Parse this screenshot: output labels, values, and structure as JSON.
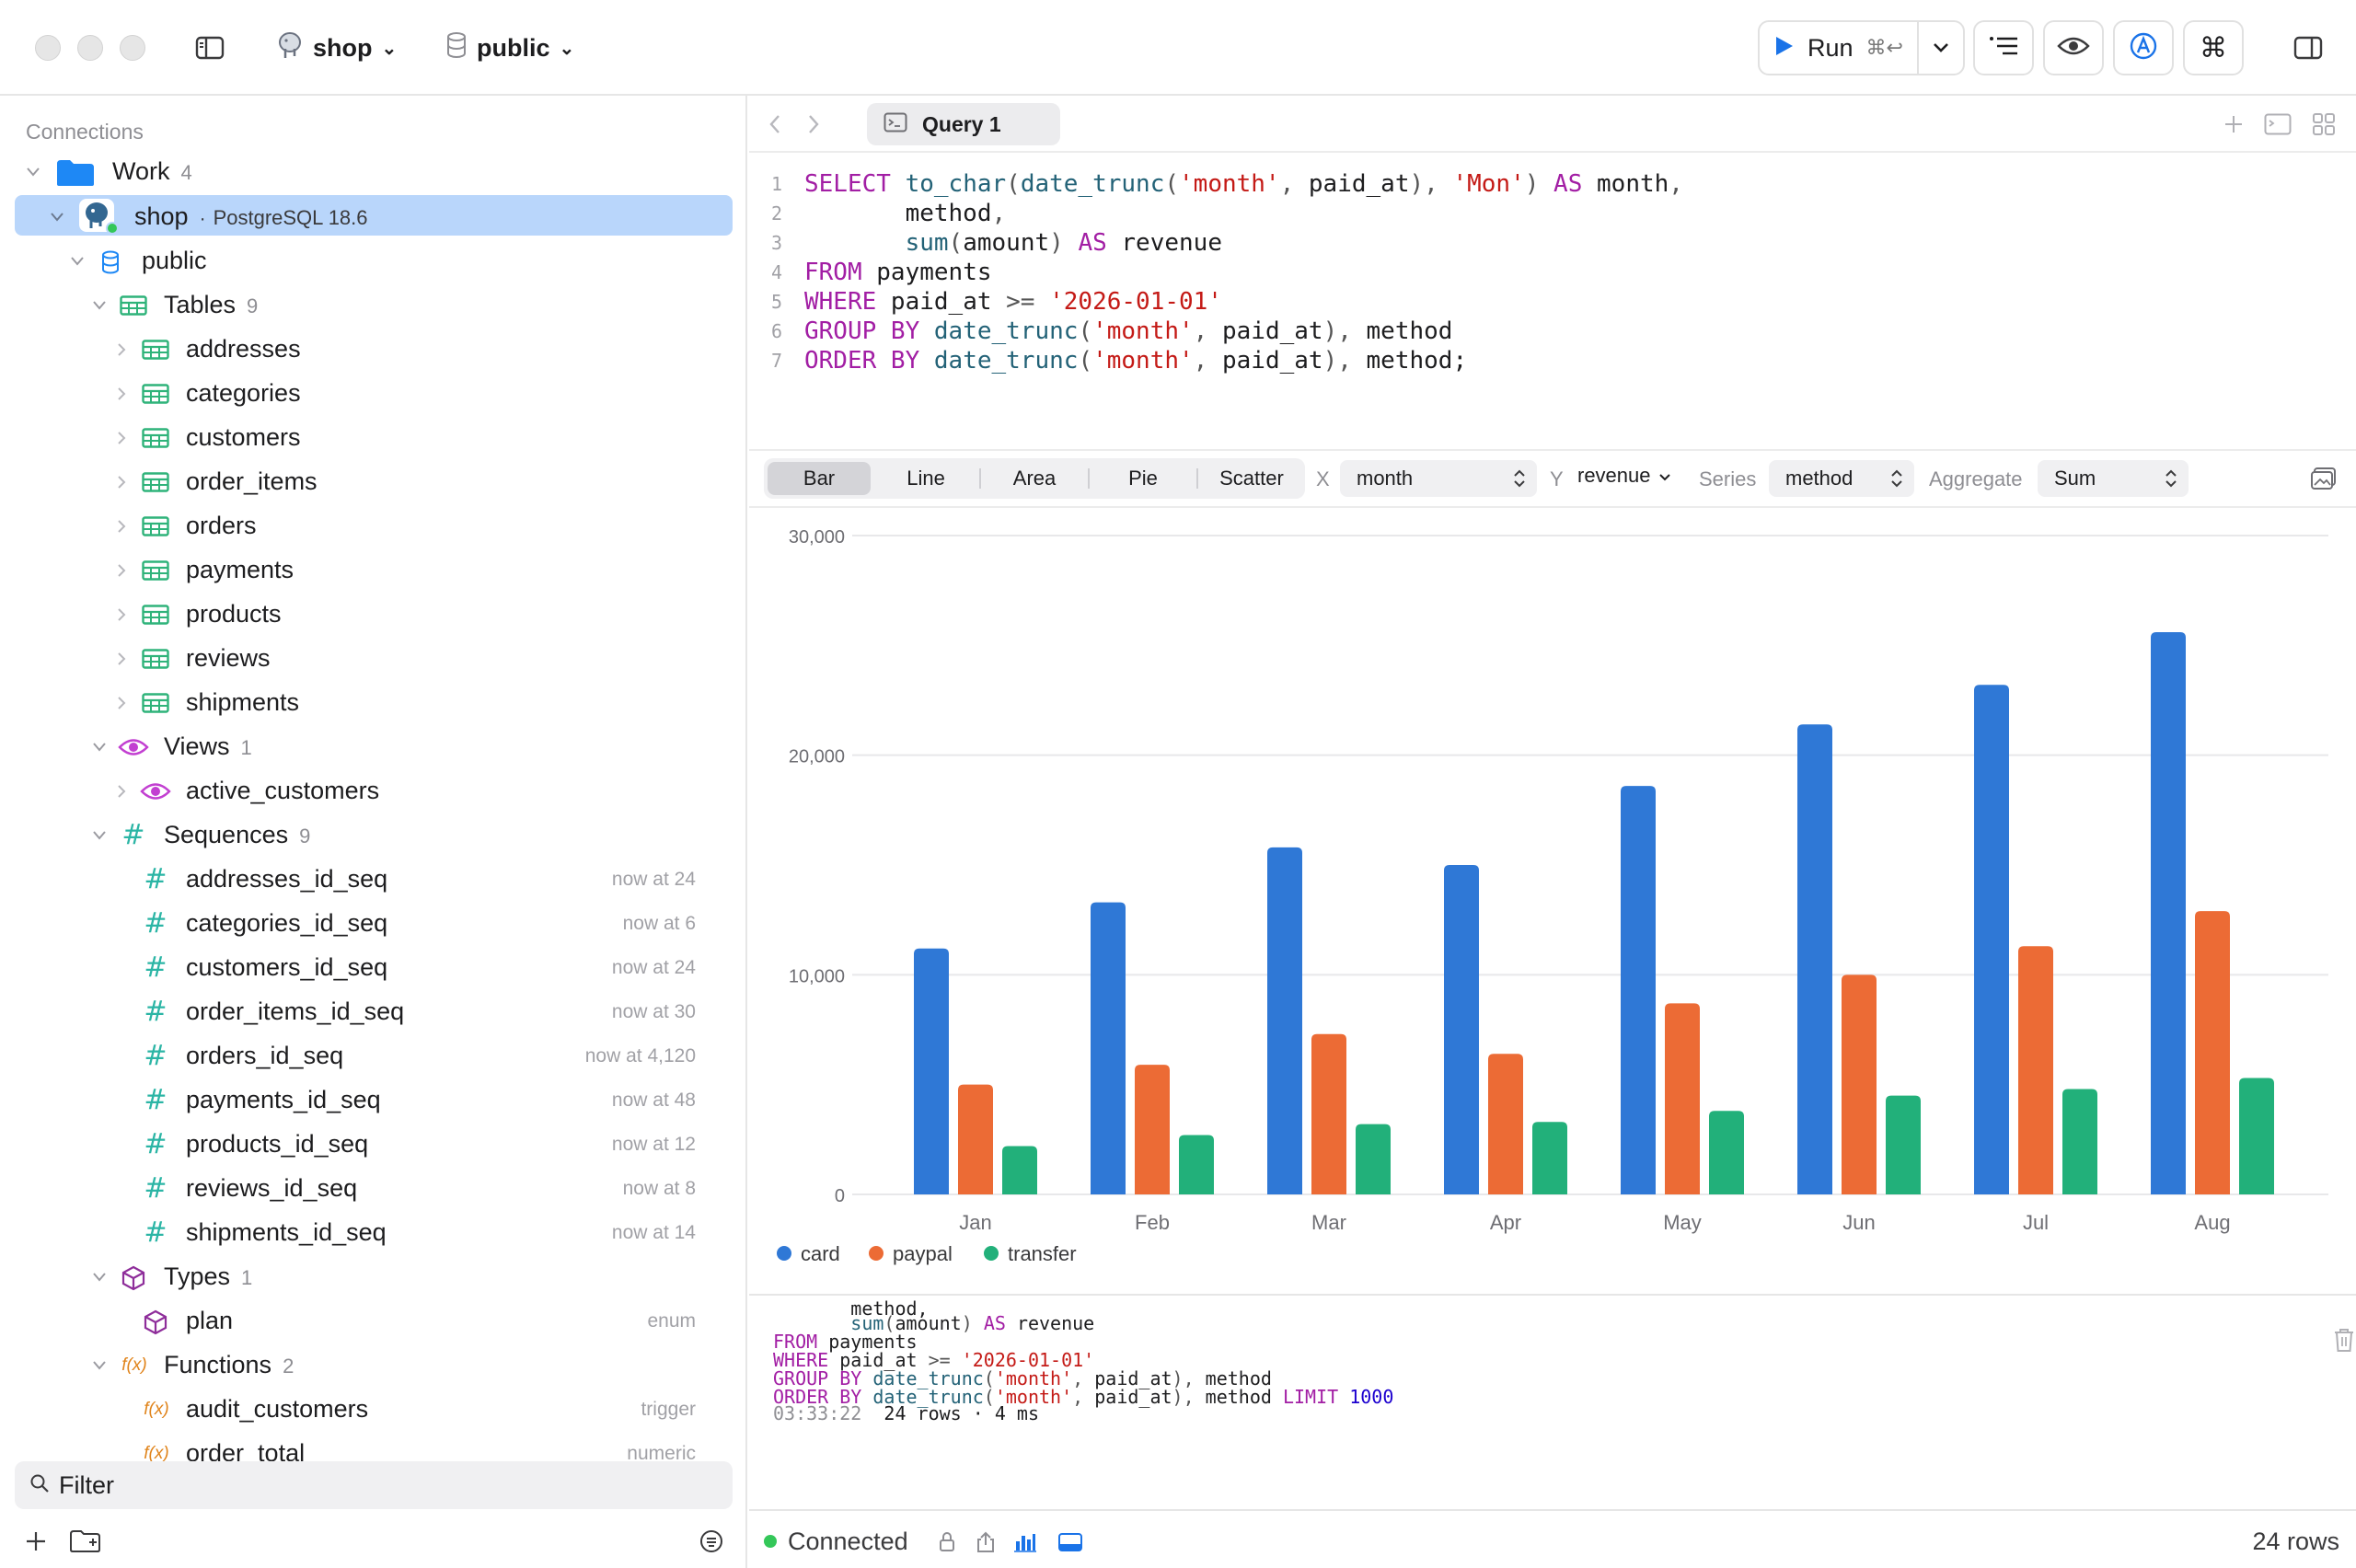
{
  "toolbar": {
    "database": "shop",
    "schema": "public",
    "run_label": "Run",
    "run_shortcut": "⌘↩"
  },
  "sidebar": {
    "heading": "Connections",
    "folder": {
      "name": "Work",
      "count": "4"
    },
    "connection": {
      "name": "shop",
      "sep": "·",
      "engine": "PostgreSQL 18.6"
    },
    "schema": "public",
    "tables": {
      "label": "Tables",
      "count": "9",
      "items": [
        "addresses",
        "categories",
        "customers",
        "order_items",
        "orders",
        "payments",
        "products",
        "reviews",
        "shipments"
      ]
    },
    "views": {
      "label": "Views",
      "count": "1",
      "items": [
        "active_customers"
      ]
    },
    "sequences": {
      "label": "Sequences",
      "count": "9",
      "items": [
        {
          "name": "addresses_id_seq",
          "meta": "now at 24"
        },
        {
          "name": "categories_id_seq",
          "meta": "now at 6"
        },
        {
          "name": "customers_id_seq",
          "meta": "now at 24"
        },
        {
          "name": "order_items_id_seq",
          "meta": "now at 30"
        },
        {
          "name": "orders_id_seq",
          "meta": "now at 4,120"
        },
        {
          "name": "payments_id_seq",
          "meta": "now at 48"
        },
        {
          "name": "products_id_seq",
          "meta": "now at 12"
        },
        {
          "name": "reviews_id_seq",
          "meta": "now at 8"
        },
        {
          "name": "shipments_id_seq",
          "meta": "now at 14"
        }
      ]
    },
    "types": {
      "label": "Types",
      "count": "1",
      "items": [
        {
          "name": "plan",
          "meta": "enum"
        }
      ]
    },
    "functions": {
      "label": "Functions",
      "count": "2",
      "items": [
        {
          "name": "audit_customers",
          "meta": "trigger"
        },
        {
          "name": "order_total",
          "meta": "numeric"
        }
      ]
    },
    "function_icon_text": "f(x)",
    "sequence_icon_text": "#",
    "filter_placeholder": "Filter"
  },
  "tab": {
    "label": "Query 1"
  },
  "editor": {
    "lines": [
      {
        "n": "1",
        "tokens": [
          [
            "kw",
            "SELECT "
          ],
          [
            "fn",
            "to_char"
          ],
          [
            "punc",
            "("
          ],
          [
            "fn",
            "date_trunc"
          ],
          [
            "punc",
            "("
          ],
          [
            "str",
            "'month'"
          ],
          [
            "punc",
            ", "
          ],
          [
            "plain",
            "paid_at"
          ],
          [
            "punc",
            "), "
          ],
          [
            "str",
            "'Mon'"
          ],
          [
            "punc",
            ") "
          ],
          [
            "kw",
            "AS "
          ],
          [
            "plain",
            "month"
          ],
          [
            "punc",
            ","
          ]
        ]
      },
      {
        "n": "2",
        "tokens": [
          [
            "plain",
            "       method"
          ],
          [
            "punc",
            ","
          ]
        ]
      },
      {
        "n": "3",
        "tokens": [
          [
            "plain",
            "       "
          ],
          [
            "fn",
            "sum"
          ],
          [
            "punc",
            "("
          ],
          [
            "plain",
            "amount"
          ],
          [
            "punc",
            ") "
          ],
          [
            "kw",
            "AS "
          ],
          [
            "plain",
            "revenue"
          ]
        ]
      },
      {
        "n": "4",
        "tokens": [
          [
            "kw",
            "FROM "
          ],
          [
            "plain",
            "payments"
          ]
        ]
      },
      {
        "n": "5",
        "tokens": [
          [
            "kw",
            "WHERE "
          ],
          [
            "plain",
            "paid_at "
          ],
          [
            "punc",
            ">= "
          ],
          [
            "str",
            "'2026-01-01'"
          ]
        ]
      },
      {
        "n": "6",
        "tokens": [
          [
            "kw",
            "GROUP BY "
          ],
          [
            "fn",
            "date_trunc"
          ],
          [
            "punc",
            "("
          ],
          [
            "str",
            "'month'"
          ],
          [
            "punc",
            ", "
          ],
          [
            "plain",
            "paid_at"
          ],
          [
            "punc",
            "), "
          ],
          [
            "plain",
            "method"
          ]
        ]
      },
      {
        "n": "7",
        "tokens": [
          [
            "kw",
            "ORDER BY "
          ],
          [
            "fn",
            "date_trunc"
          ],
          [
            "punc",
            "("
          ],
          [
            "str",
            "'month'"
          ],
          [
            "punc",
            ", "
          ],
          [
            "plain",
            "paid_at"
          ],
          [
            "punc",
            "), "
          ],
          [
            "plain",
            "method;"
          ]
        ]
      }
    ]
  },
  "chart_controls": {
    "types": [
      "Bar",
      "Line",
      "Area",
      "Pie",
      "Scatter"
    ],
    "active_type": "Bar",
    "x_label": "X",
    "x_value": "month",
    "y_label": "Y",
    "y_value": "revenue",
    "series_label": "Series",
    "series_value": "method",
    "aggregate_label": "Aggregate",
    "aggregate_value": "Sum"
  },
  "chart_data": {
    "type": "bar",
    "categories": [
      "Jan",
      "Feb",
      "Mar",
      "Apr",
      "May",
      "Jun",
      "Jul",
      "Aug"
    ],
    "series": [
      {
        "name": "card",
        "color": "#2f78d6",
        "values": [
          11200,
          13300,
          15800,
          15000,
          18600,
          21400,
          23200,
          25600
        ]
      },
      {
        "name": "paypal",
        "color": "#ec6b35",
        "values": [
          5000,
          5900,
          7300,
          6400,
          8700,
          10000,
          11300,
          12900
        ]
      },
      {
        "name": "transfer",
        "color": "#22b07a",
        "values": [
          2200,
          2700,
          3200,
          3300,
          3800,
          4500,
          4800,
          5300
        ]
      }
    ],
    "ylim": [
      0,
      30000
    ],
    "yticks": [
      "0",
      "10,000",
      "20,000",
      "30,000"
    ],
    "ytick_values": [
      0,
      10000,
      20000,
      30000
    ],
    "grid": true,
    "legend": "bottom-left"
  },
  "log": {
    "partial_line": "       method,",
    "lines": [
      {
        "tokens": [
          [
            "plain",
            "       "
          ],
          [
            "fn",
            "sum"
          ],
          [
            "punc",
            "("
          ],
          [
            "plain",
            "amount"
          ],
          [
            "punc",
            ") "
          ],
          [
            "kw",
            "AS "
          ],
          [
            "plain",
            "revenue"
          ]
        ]
      },
      {
        "tokens": [
          [
            "kw",
            "FROM "
          ],
          [
            "plain",
            "payments"
          ]
        ]
      },
      {
        "tokens": [
          [
            "kw",
            "WHERE "
          ],
          [
            "plain",
            "paid_at "
          ],
          [
            "punc",
            ">= "
          ],
          [
            "str",
            "'2026-01-01'"
          ]
        ]
      },
      {
        "tokens": [
          [
            "kw",
            "GROUP BY "
          ],
          [
            "fn",
            "date_trunc"
          ],
          [
            "punc",
            "("
          ],
          [
            "str",
            "'month'"
          ],
          [
            "punc",
            ", "
          ],
          [
            "plain",
            "paid_at"
          ],
          [
            "punc",
            "), "
          ],
          [
            "plain",
            "method"
          ]
        ]
      },
      {
        "tokens": [
          [
            "kw",
            "ORDER BY "
          ],
          [
            "fn",
            "date_trunc"
          ],
          [
            "punc",
            "("
          ],
          [
            "str",
            "'month'"
          ],
          [
            "punc",
            ", "
          ],
          [
            "plain",
            "paid_at"
          ],
          [
            "punc",
            "), "
          ],
          [
            "plain",
            "method "
          ],
          [
            "kw",
            "LIMIT "
          ],
          [
            "num",
            "1000"
          ]
        ]
      }
    ],
    "time": "03:33:22",
    "summary": "24 rows · 4 ms"
  },
  "status": {
    "connection": "Connected",
    "rows": "24 rows"
  }
}
